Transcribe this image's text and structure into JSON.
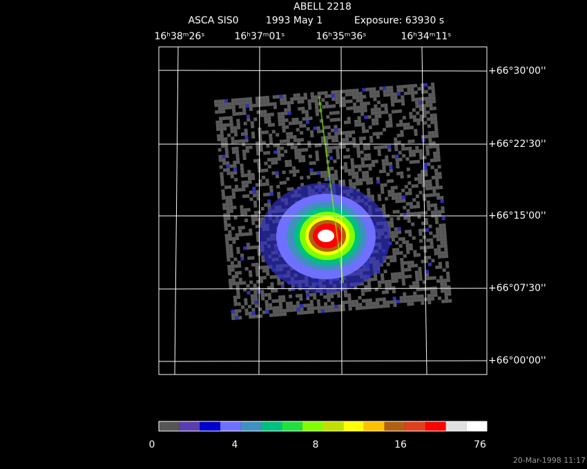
{
  "header": {
    "title": "ABELL 2218",
    "instrument": "ASCA SIS0",
    "date": "1993 May  1",
    "exposure": "Exposure: 63930 s"
  },
  "ra_labels": [
    "16ʰ38ᵐ26ˢ",
    "16ʰ37ᵐ01ˢ",
    "16ʰ35ᵐ36ˢ",
    "16ʰ34ᵐ11ˢ"
  ],
  "dec_labels": [
    "+66°30'00''",
    "+66°22'30''",
    "+66°15'00''",
    "+66°07'30''",
    "+66°00'00''"
  ],
  "colorbar": {
    "labels": [
      0,
      4,
      8,
      16,
      76
    ],
    "colors": [
      "#555555",
      "#5a3db0",
      "#0000cc",
      "#7070ff",
      "#4090c0",
      "#00c080",
      "#20e040",
      "#80ff00",
      "#c0e000",
      "#ffff00",
      "#ffc000",
      "#b06010",
      "#e04020",
      "#ff0000",
      "#e0e0e0",
      "#ffffff"
    ]
  },
  "timestamp": "20-Mar-1998 11:17"
}
